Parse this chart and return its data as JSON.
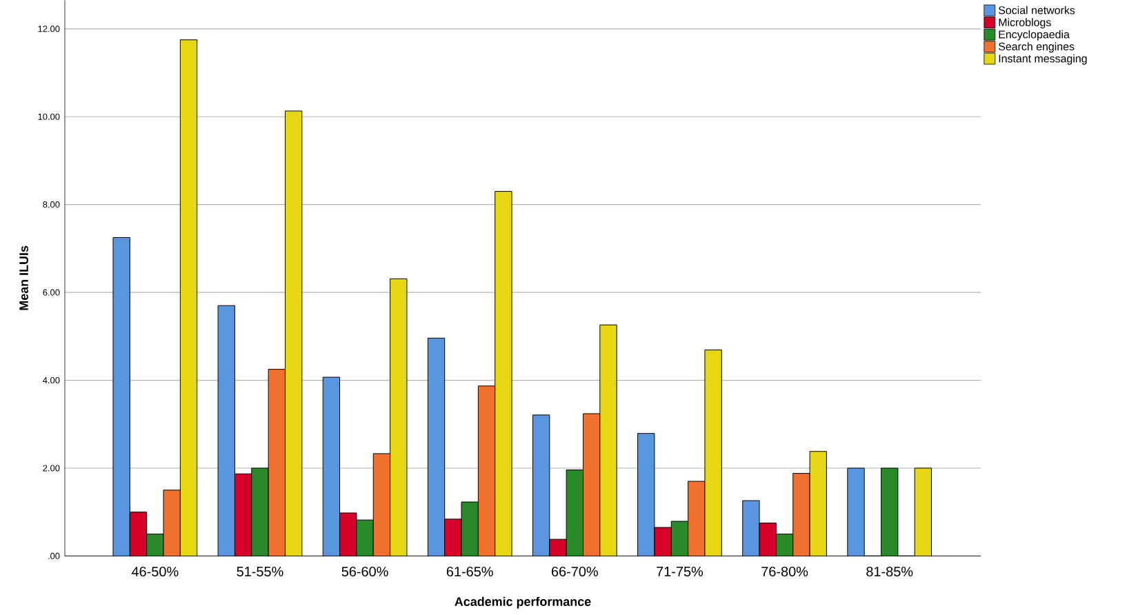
{
  "chart_data": {
    "type": "bar",
    "xlabel": "Academic performance",
    "ylabel": "Mean ILUIs",
    "categories": [
      "46-50%",
      "51-55%",
      "56-60%",
      "61-65%",
      "66-70%",
      "71-75%",
      "76-80%",
      "81-85%"
    ],
    "series": [
      {
        "name": "Social networks",
        "color": "#5a96e0",
        "values": [
          7.25,
          5.7,
          4.07,
          4.96,
          3.21,
          2.79,
          1.26,
          2.0
        ]
      },
      {
        "name": "Microblogs",
        "color": "#d6002b",
        "values": [
          1.0,
          1.87,
          0.98,
          0.84,
          0.38,
          0.65,
          0.75,
          0
        ]
      },
      {
        "name": "Encyclopaedia",
        "color": "#2a8a2a",
        "values": [
          0.5,
          2.0,
          0.82,
          1.23,
          1.96,
          0.79,
          0.5,
          2.0
        ]
      },
      {
        "name": "Search engines",
        "color": "#f07030",
        "values": [
          1.5,
          4.25,
          2.33,
          3.87,
          3.24,
          1.7,
          1.88,
          0
        ]
      },
      {
        "name": "Instant messaging",
        "color": "#e6d614",
        "values": [
          11.75,
          10.13,
          6.31,
          8.3,
          5.26,
          4.69,
          2.38,
          2.0
        ]
      }
    ],
    "ylim": [
      0,
      12.65
    ],
    "yticks": [
      {
        "value": 0,
        "label": ".00"
      },
      {
        "value": 2,
        "label": "2.00"
      },
      {
        "value": 4,
        "label": "4.00"
      },
      {
        "value": 6,
        "label": "6.00"
      },
      {
        "value": 8,
        "label": "8.00"
      },
      {
        "value": 10,
        "label": "10.00"
      },
      {
        "value": 12,
        "label": "12.00"
      }
    ],
    "grid": "y",
    "legend": "top right"
  }
}
